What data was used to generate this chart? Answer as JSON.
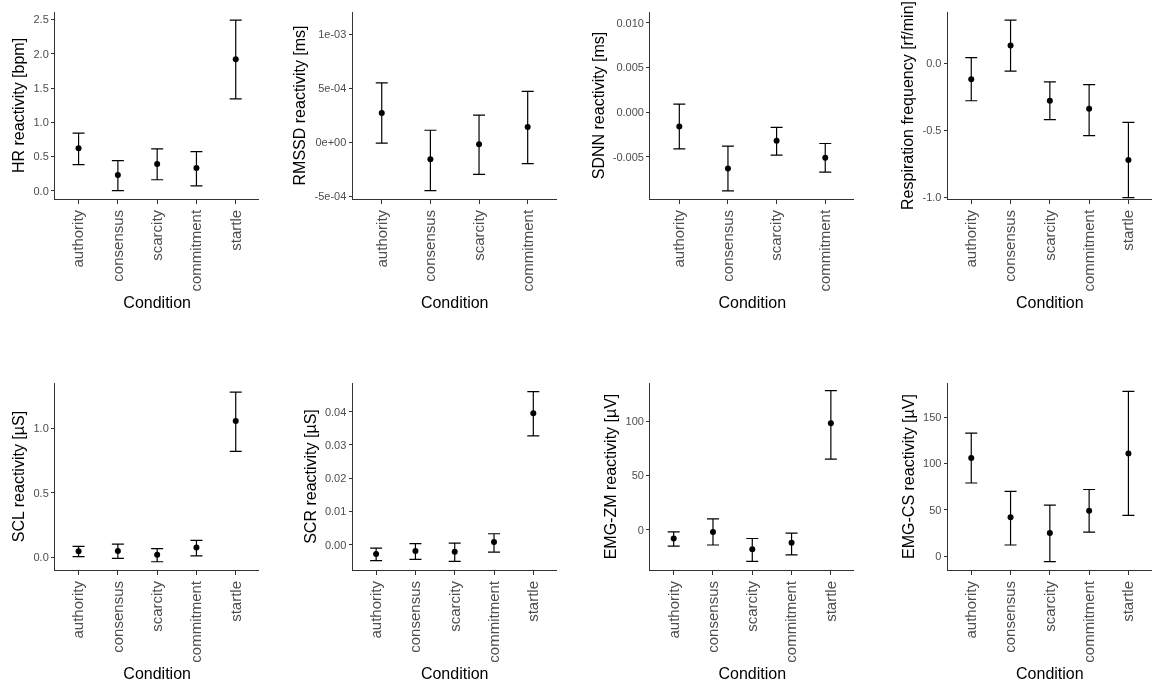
{
  "chart_data": [
    {
      "type": "scatter",
      "color": "#000000",
      "marker": "circle",
      "xlabel": "Condition",
      "ylabel": "HR reactivity [bpm]",
      "categories": [
        "authority",
        "consensus",
        "scarcity",
        "commitment",
        "startle"
      ],
      "values": [
        0.62,
        0.23,
        0.39,
        0.33,
        1.92
      ],
      "errors": [
        [
          0.38,
          0.84
        ],
        [
          0.0,
          0.44
        ],
        [
          0.16,
          0.61
        ],
        [
          0.07,
          0.57
        ],
        [
          1.34,
          2.49
        ]
      ],
      "ylim": [
        -0.12,
        2.61
      ],
      "yticks": [
        {
          "value": 0,
          "label": "0.0"
        },
        0.5,
        {
          "value": 1,
          "label": "1.0"
        },
        1.5,
        {
          "value": 2,
          "label": "2.0"
        },
        2.5
      ]
    },
    {
      "type": "scatter",
      "color": "#000000",
      "marker": "circle",
      "xlabel": "Condition",
      "ylabel": "RMSSD reactivity [ms]",
      "categories": [
        "authority",
        "consensus",
        "scarcity",
        "commitment"
      ],
      "values": [
        0.00027,
        -0.00016,
        -2e-05,
        0.00014
      ],
      "errors": [
        [
          -1e-05,
          0.00055
        ],
        [
          -0.00045,
          0.00011
        ],
        [
          -0.0003,
          0.00025
        ],
        [
          -0.0002,
          0.00047
        ]
      ],
      "ylim": [
        -0.000527,
        0.001207
      ],
      "yticks": [
        {
          "value": -0.0005,
          "label": "-5e-04"
        },
        {
          "value": 0,
          "label": "0e+00"
        },
        {
          "value": 0.0005,
          "label": "5e-04"
        },
        {
          "value": 0.001,
          "label": "1e-03"
        }
      ]
    },
    {
      "type": "scatter",
      "color": "#000000",
      "marker": "circle",
      "xlabel": "Condition",
      "ylabel": "SDNN reactivity [ms]",
      "categories": [
        "authority",
        "consensus",
        "scarcity",
        "commitment"
      ],
      "values": [
        -0.0016,
        -0.0063,
        -0.0032,
        -0.0051
      ],
      "errors": [
        [
          -0.0041,
          0.0009
        ],
        [
          -0.0088,
          -0.0038
        ],
        [
          -0.0048,
          -0.0017
        ],
        [
          -0.0067,
          -0.0035
        ]
      ],
      "ylim": [
        -0.0097,
        0.0112
      ],
      "yticks": [
        {
          "value": -0.005,
          "label": "-0.005"
        },
        {
          "value": 0,
          "label": "0.000"
        },
        {
          "value": 0.005,
          "label": "0.005"
        },
        {
          "value": 0.01,
          "label": "0.010"
        }
      ]
    },
    {
      "type": "scatter",
      "color": "#000000",
      "marker": "circle",
      "xlabel": "Condition",
      "ylabel": "Respiration frequency [rf/min]",
      "categories": [
        "authority",
        "consensus",
        "scarcity",
        "commitment",
        "startle"
      ],
      "values": [
        -0.12,
        0.13,
        -0.28,
        -0.34,
        -0.72
      ],
      "errors": [
        [
          -0.28,
          0.04
        ],
        [
          -0.06,
          0.32
        ],
        [
          -0.42,
          -0.14
        ],
        [
          -0.54,
          -0.16
        ],
        [
          -1.0,
          -0.44
        ]
      ],
      "ylim": [
        -1.01,
        0.38
      ],
      "yticks": [
        {
          "value": -1,
          "label": "-1.0"
        },
        -0.5,
        {
          "value": 0,
          "label": "0.0"
        }
      ]
    },
    {
      "type": "scatter",
      "color": "#000000",
      "marker": "circle",
      "xlabel": "Condition",
      "ylabel": "SCL reactivity [µS]",
      "categories": [
        "authority",
        "consensus",
        "scarcity",
        "commitment",
        "startle"
      ],
      "values": [
        0.046,
        0.048,
        0.018,
        0.074,
        1.056
      ],
      "errors": [
        [
          0.003,
          0.084
        ],
        [
          -0.01,
          0.1
        ],
        [
          -0.036,
          0.066
        ],
        [
          0.01,
          0.13
        ],
        [
          0.82,
          1.28
        ]
      ],
      "ylim": [
        -0.1,
        1.35
      ],
      "yticks": [
        {
          "value": 0,
          "label": "0.0"
        },
        0.5,
        {
          "value": 1,
          "label": "1.0"
        }
      ]
    },
    {
      "type": "scatter",
      "color": "#000000",
      "marker": "circle",
      "xlabel": "Condition",
      "ylabel": "SCR reactivity [µS]",
      "categories": [
        "authority",
        "consensus",
        "scarcity",
        "commitment",
        "startle"
      ],
      "values": [
        -0.0028,
        -0.0019,
        -0.0021,
        0.0008,
        0.0395
      ],
      "errors": [
        [
          -0.0048,
          -0.001
        ],
        [
          -0.0044,
          0.0003
        ],
        [
          -0.005,
          0.0005
        ],
        [
          -0.0022,
          0.0033
        ],
        [
          0.0327,
          0.046
        ]
      ],
      "ylim": [
        -0.0076,
        0.0486
      ],
      "yticks": [
        {
          "value": 0,
          "label": "0.00"
        },
        0.01,
        0.02,
        0.03,
        0.04
      ]
    },
    {
      "type": "scatter",
      "color": "#000000",
      "marker": "circle",
      "xlabel": "Condition",
      "ylabel": "EMG-ZM reactivity [µV]",
      "categories": [
        "authority",
        "consensus",
        "scarcity",
        "commitment",
        "startle"
      ],
      "values": [
        -8,
        -2,
        -18,
        -12,
        98
      ],
      "errors": [
        [
          -15,
          -2
        ],
        [
          -14,
          10
        ],
        [
          -29,
          -8
        ],
        [
          -23,
          -3
        ],
        [
          65,
          128
        ]
      ],
      "ylim": [
        -37,
        135
      ],
      "yticks": [
        0,
        50,
        100
      ]
    },
    {
      "type": "scatter",
      "color": "#000000",
      "marker": "circle",
      "xlabel": "Condition",
      "ylabel": "EMG-CS reactivity [µV]",
      "categories": [
        "authority",
        "consensus",
        "scarcity",
        "commitment",
        "startle"
      ],
      "values": [
        106,
        42,
        25,
        49,
        111
      ],
      "errors": [
        [
          79,
          133
        ],
        [
          12,
          70
        ],
        [
          -6,
          55
        ],
        [
          26,
          72
        ],
        [
          44,
          178
        ]
      ],
      "ylim": [
        -15,
        187
      ],
      "yticks": [
        0,
        50,
        100,
        150
      ]
    }
  ]
}
